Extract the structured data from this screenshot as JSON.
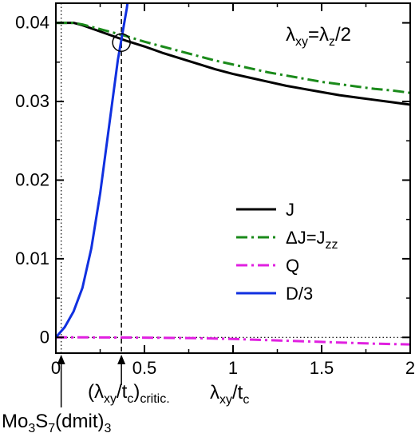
{
  "chart_data": {
    "type": "line",
    "title": "",
    "xlabel_main": "λ",
    "xlabel_main_sub": "xy",
    "xlabel_main_tail": "/t",
    "xlabel_main_tail_sub": "c",
    "xlim": [
      0,
      2
    ],
    "ylim": [
      -0.002,
      0.0425
    ],
    "x_ticks": [
      0,
      0.5,
      1,
      1.5,
      2
    ],
    "x_tick_labels": [
      "0",
      "0.5",
      "1",
      "1.5",
      "2"
    ],
    "y_ticks": [
      0,
      0.01,
      0.02,
      0.03,
      0.04
    ],
    "y_tick_labels": [
      "0",
      "0.01",
      "0.02",
      "0.03",
      "0.04"
    ],
    "grid": false,
    "legend_position": "right-middle",
    "series": [
      {
        "name": "J",
        "color": "#000000",
        "dash": "solid",
        "x": [
          0,
          0.05,
          0.1,
          0.15,
          0.2,
          0.3,
          0.4,
          0.5,
          0.6,
          0.7,
          0.8,
          0.9,
          1.0,
          1.1,
          1.2,
          1.3,
          1.4,
          1.5,
          1.6,
          1.7,
          1.8,
          1.9,
          2.0
        ],
        "y": [
          0.04,
          0.04,
          0.04,
          0.0397,
          0.0393,
          0.0385,
          0.0377,
          0.037,
          0.0362,
          0.0355,
          0.0348,
          0.0341,
          0.0335,
          0.033,
          0.0325,
          0.032,
          0.0316,
          0.0312,
          0.0308,
          0.0305,
          0.0302,
          0.0299,
          0.0296
        ]
      },
      {
        "name": "ΔJ=J",
        "name_sub": "zz",
        "color": "#1a8a1a",
        "dash": "dashdot",
        "x": [
          0,
          0.05,
          0.1,
          0.15,
          0.2,
          0.3,
          0.4,
          0.5,
          0.6,
          0.7,
          0.8,
          0.9,
          1.0,
          1.1,
          1.2,
          1.3,
          1.4,
          1.5,
          1.6,
          1.7,
          1.8,
          1.9,
          2.0
        ],
        "y": [
          0.04,
          0.04,
          0.04,
          0.0398,
          0.0395,
          0.0389,
          0.0383,
          0.0376,
          0.037,
          0.0364,
          0.0358,
          0.0352,
          0.0347,
          0.0342,
          0.0337,
          0.0333,
          0.0329,
          0.0325,
          0.0322,
          0.0319,
          0.0316,
          0.0314,
          0.0311
        ]
      },
      {
        "name": "Q",
        "color": "#e020e0",
        "dash": "dashdot",
        "x": [
          0,
          0.2,
          0.4,
          0.6,
          0.8,
          1.0,
          1.2,
          1.4,
          1.6,
          1.8,
          2.0
        ],
        "y": [
          0,
          0,
          -2e-05,
          -5e-05,
          -0.0001,
          -0.0002,
          -0.00035,
          -0.0005,
          -0.00065,
          -0.0008,
          -0.0009
        ]
      },
      {
        "name": "D/3",
        "color": "#1030e0",
        "dash": "solid",
        "x": [
          0,
          0.05,
          0.1,
          0.15,
          0.2,
          0.25,
          0.3,
          0.35,
          0.4,
          0.45
        ],
        "y": [
          0,
          0.0013,
          0.0033,
          0.0063,
          0.0113,
          0.0183,
          0.0268,
          0.0353,
          0.0418,
          0.05
        ]
      }
    ],
    "annotations": {
      "ratio_label": "λ",
      "ratio_label_sub1": "xy",
      "ratio_label_mid": "=λ",
      "ratio_label_sub2": "z",
      "ratio_label_tail": "/2",
      "critical_label": "(λ",
      "critical_label_sub1": "xy",
      "critical_label_mid": "/t",
      "critical_label_sub2": "c",
      "critical_label_tail": ")",
      "critical_label_sub3": "critic.",
      "critical_x": 0.37,
      "critical_y": 0.0375,
      "material_label_a": "Mo",
      "material_label_a_sub": "3",
      "material_label_b": "S",
      "material_label_b_sub": "7",
      "material_label_c": "(dmit)",
      "material_label_c_sub": "3",
      "material_x": 0.03
    }
  }
}
